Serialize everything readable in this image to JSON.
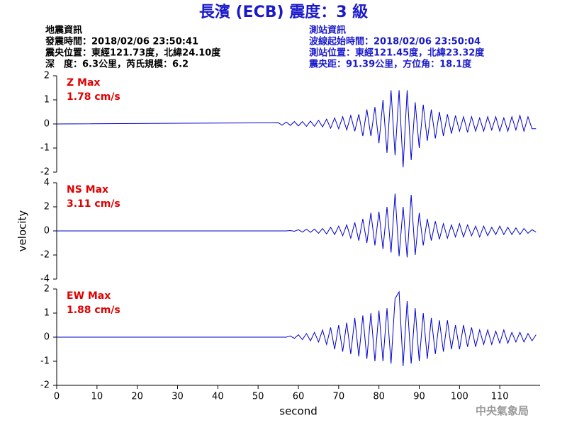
{
  "title": "長濱 (ECB) 震度：3 級",
  "header": {
    "left": [
      "地震資訊",
      "發震時間：2018/02/06 23:50:41",
      "震央位置：東經121.73度，北緯24.10度",
      "深　度：6.3公里，芮氏規模：6.2"
    ],
    "right": [
      "測站資訊",
      "波線起始時間：2018/02/06 23:50:04",
      "測站位置：東經121.45度，北緯23.32度",
      "震央距：91.39公里，方位角：18.1度"
    ]
  },
  "watermark": "中央氣象局",
  "chart_data": [
    {
      "type": "line",
      "annotations": [
        "Z Max",
        "1.78 cm/s"
      ],
      "annotation_color": "#e00000",
      "color": "#0000cc",
      "xlim": [
        0,
        120
      ],
      "ylim": [
        -2,
        2
      ],
      "yticks": [
        -2,
        -1,
        0,
        1,
        2
      ],
      "x": [
        0,
        55,
        56,
        57,
        58,
        59,
        60,
        61,
        62,
        63,
        64,
        65,
        66,
        67,
        68,
        69,
        70,
        71,
        72,
        73,
        74,
        75,
        76,
        77,
        78,
        79,
        80,
        81,
        82,
        83,
        84,
        85,
        86,
        87,
        88,
        89,
        90,
        91,
        92,
        93,
        94,
        95,
        96,
        97,
        98,
        99,
        100,
        101,
        102,
        103,
        104,
        105,
        106,
        107,
        108,
        109,
        110,
        111,
        112,
        113,
        114,
        115,
        116,
        117,
        118,
        119
      ],
      "values": [
        0,
        0.05,
        -0.05,
        0.08,
        -0.06,
        0.1,
        -0.08,
        0.1,
        -0.1,
        0.12,
        -0.1,
        0.15,
        -0.12,
        0.2,
        -0.18,
        0.25,
        -0.2,
        0.3,
        -0.25,
        0.35,
        -0.3,
        0.4,
        -0.5,
        0.6,
        -0.5,
        0.7,
        -0.8,
        1.0,
        -1.2,
        1.4,
        -1.3,
        1.4,
        -1.8,
        1.4,
        -1.5,
        0.9,
        -1.0,
        0.8,
        -0.7,
        0.6,
        -0.6,
        0.5,
        -0.5,
        0.4,
        -0.4,
        0.35,
        -0.3,
        0.3,
        -0.35,
        0.3,
        -0.3,
        0.25,
        -0.3,
        0.3,
        -0.25,
        0.3,
        -0.3,
        0.25,
        -0.3,
        0.3,
        -0.25,
        0.35,
        -0.3,
        0.3,
        -0.2,
        -0.2
      ]
    },
    {
      "type": "line",
      "annotations": [
        "NS Max",
        "3.11 cm/s"
      ],
      "annotation_color": "#e00000",
      "color": "#0000cc",
      "ylabel": "velocity",
      "xlim": [
        0,
        120
      ],
      "ylim": [
        -4,
        4
      ],
      "yticks": [
        -4,
        -2,
        0,
        2,
        4
      ],
      "x": [
        0,
        55,
        56,
        57,
        58,
        59,
        60,
        61,
        62,
        63,
        64,
        65,
        66,
        67,
        68,
        69,
        70,
        71,
        72,
        73,
        74,
        75,
        76,
        77,
        78,
        79,
        80,
        81,
        82,
        83,
        84,
        85,
        86,
        87,
        88,
        89,
        90,
        91,
        92,
        93,
        94,
        95,
        96,
        97,
        98,
        99,
        100,
        101,
        102,
        103,
        104,
        105,
        106,
        107,
        108,
        109,
        110,
        111,
        112,
        113,
        114,
        115,
        116,
        117,
        118,
        119
      ],
      "values": [
        0,
        0,
        0,
        0,
        0.03,
        -0.03,
        0.1,
        -0.1,
        0.15,
        -0.12,
        0.15,
        -0.2,
        0.2,
        -0.25,
        0.3,
        -0.3,
        0.4,
        -0.4,
        0.5,
        -0.6,
        0.7,
        -0.8,
        1.0,
        -1.0,
        1.5,
        -1.2,
        1.6,
        -1.5,
        2.0,
        -1.8,
        3.1,
        -2.1,
        2.0,
        -2.2,
        3.0,
        -2.0,
        1.5,
        -1.2,
        1.0,
        -0.8,
        0.8,
        -0.7,
        0.6,
        -0.6,
        0.5,
        -0.5,
        0.6,
        -0.5,
        0.5,
        -0.4,
        0.4,
        -0.5,
        0.4,
        -0.4,
        0.3,
        -0.3,
        0.4,
        -0.3,
        0.3,
        -0.3,
        0.25,
        -0.3,
        0.2,
        -0.2,
        0.1,
        -0.1
      ]
    },
    {
      "type": "line",
      "annotations": [
        "EW Max",
        "1.88 cm/s"
      ],
      "annotation_color": "#e00000",
      "color": "#0000cc",
      "xlabel": "second",
      "xlim": [
        0,
        120
      ],
      "xticks": [
        0,
        10,
        20,
        30,
        40,
        50,
        60,
        70,
        80,
        90,
        100,
        110
      ],
      "ylim": [
        -2,
        2
      ],
      "yticks": [
        -2,
        -1,
        0,
        1,
        2
      ],
      "x": [
        0,
        55,
        56,
        57,
        58,
        59,
        60,
        61,
        62,
        63,
        64,
        65,
        66,
        67,
        68,
        69,
        70,
        71,
        72,
        73,
        74,
        75,
        76,
        77,
        78,
        79,
        80,
        81,
        82,
        83,
        84,
        85,
        86,
        87,
        88,
        89,
        90,
        91,
        92,
        93,
        94,
        95,
        96,
        97,
        98,
        99,
        100,
        101,
        102,
        103,
        104,
        105,
        106,
        107,
        108,
        109,
        110,
        111,
        112,
        113,
        114,
        115,
        116,
        117,
        118,
        119
      ],
      "values": [
        0,
        0,
        0,
        0,
        0.05,
        -0.05,
        0.1,
        -0.1,
        0.15,
        -0.15,
        0.2,
        -0.2,
        0.3,
        -0.3,
        0.4,
        -0.5,
        0.5,
        -0.6,
        0.6,
        -0.7,
        0.8,
        -0.8,
        0.9,
        -0.9,
        1.0,
        -1.0,
        1.1,
        -1.0,
        1.2,
        -1.1,
        1.6,
        1.88,
        -1.2,
        1.5,
        -1.1,
        1.2,
        -1.0,
        1.0,
        -0.9,
        0.8,
        -0.7,
        0.7,
        -0.6,
        0.7,
        -0.5,
        0.5,
        -0.5,
        0.5,
        -0.4,
        0.4,
        -0.4,
        0.3,
        -0.3,
        0.3,
        -0.3,
        0.25,
        -0.25,
        0.3,
        -0.25,
        0.2,
        -0.2,
        0.2,
        -0.2,
        0.15,
        -0.15,
        0.1
      ]
    }
  ]
}
